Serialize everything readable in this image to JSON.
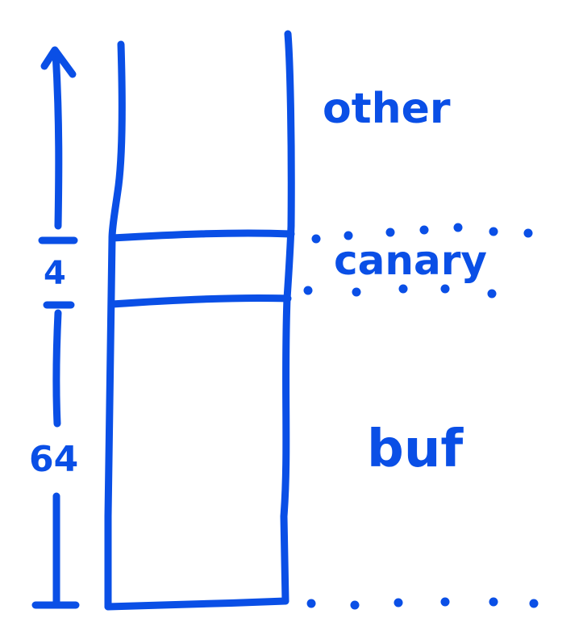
{
  "colors": {
    "ink": "#0a4fe6",
    "background": "#ffffff"
  },
  "labels": {
    "other": "other",
    "canary": "canary",
    "buf": "buf"
  },
  "dimensions": {
    "canary_size": "4",
    "buf_size": "64"
  },
  "icons": {
    "growth_arrow": "up-arrow-icon"
  }
}
